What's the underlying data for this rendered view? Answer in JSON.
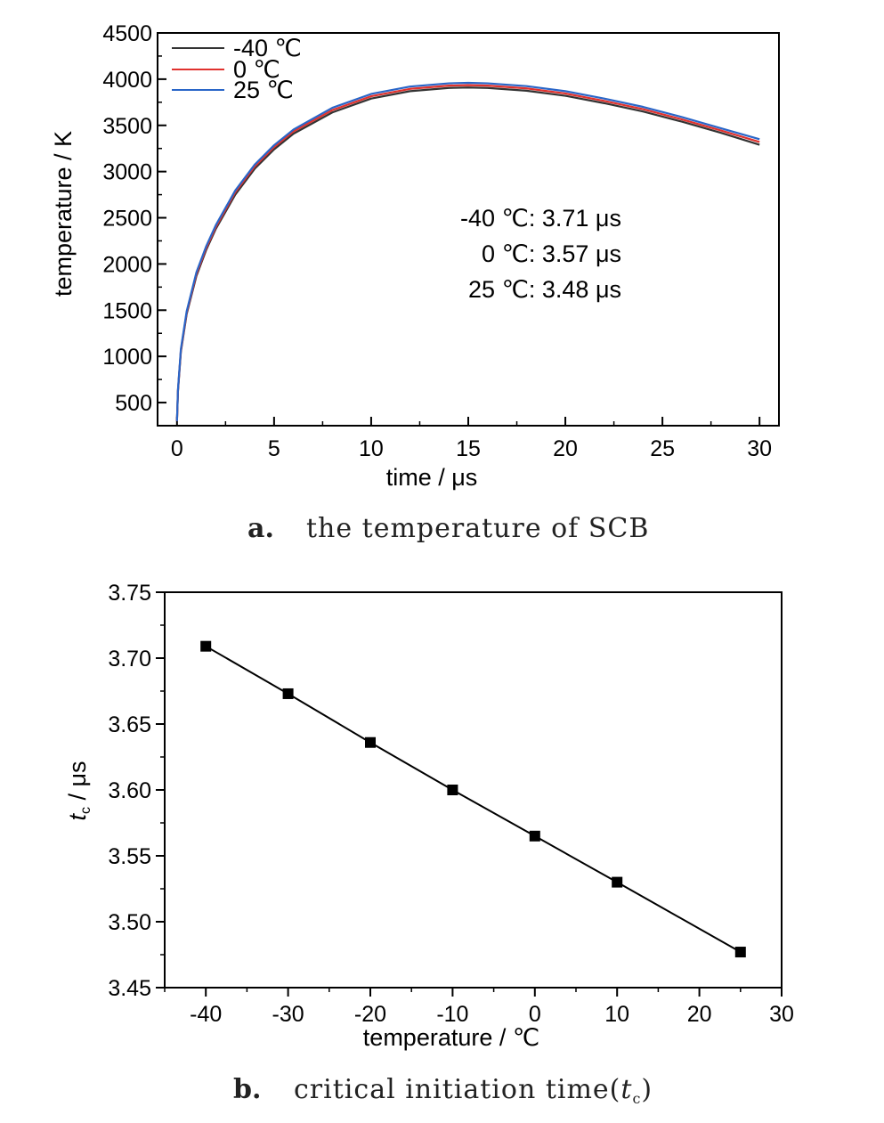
{
  "chart_data": [
    {
      "type": "line",
      "panel": "a",
      "caption_letter": "a.",
      "caption": "the temperature of SCB",
      "xlabel": "time / μs",
      "ylabel": "temperature / K",
      "xlim": [
        -1,
        31
      ],
      "ylim": [
        250,
        4500
      ],
      "xticks": [
        0,
        5,
        10,
        15,
        20,
        25,
        30
      ],
      "yticks": [
        500,
        1000,
        1500,
        2000,
        2500,
        3000,
        3500,
        4000,
        4500
      ],
      "legend_position": "top-left",
      "series": [
        {
          "name": "-40 ℃",
          "color": "#333333",
          "x": [
            0,
            0.05,
            0.2,
            0.5,
            1,
            1.5,
            2,
            3,
            4,
            5,
            6,
            8,
            10,
            12,
            14,
            15,
            16,
            18,
            20,
            22,
            24,
            26,
            28,
            30
          ],
          "y": [
            300,
            620,
            1050,
            1460,
            1870,
            2150,
            2380,
            2750,
            3030,
            3240,
            3410,
            3640,
            3790,
            3870,
            3905,
            3910,
            3905,
            3875,
            3820,
            3740,
            3650,
            3540,
            3420,
            3290
          ]
        },
        {
          "name": "0 ℃",
          "color": "#e0322e",
          "x": [
            0,
            0.05,
            0.2,
            0.5,
            1,
            1.5,
            2,
            3,
            4,
            5,
            6,
            8,
            10,
            12,
            14,
            15,
            16,
            18,
            20,
            22,
            24,
            26,
            28,
            30
          ],
          "y": [
            300,
            630,
            1065,
            1475,
            1890,
            2170,
            2400,
            2775,
            3055,
            3265,
            3435,
            3665,
            3815,
            3895,
            3930,
            3935,
            3930,
            3900,
            3845,
            3765,
            3675,
            3565,
            3445,
            3320
          ]
        },
        {
          "name": "25 ℃",
          "color": "#2a66c8",
          "x": [
            0,
            0.05,
            0.2,
            0.5,
            1,
            1.5,
            2,
            3,
            4,
            5,
            6,
            8,
            10,
            12,
            14,
            15,
            16,
            18,
            20,
            22,
            24,
            26,
            28,
            30
          ],
          "y": [
            300,
            640,
            1080,
            1490,
            1910,
            2190,
            2420,
            2795,
            3075,
            3285,
            3455,
            3690,
            3840,
            3920,
            3955,
            3960,
            3955,
            3925,
            3870,
            3790,
            3700,
            3590,
            3470,
            3350
          ]
        }
      ],
      "annotations": [
        "-40 ℃: 3.71 μs",
        "0 ℃: 3.57 μs",
        "25 ℃: 3.48 μs"
      ]
    },
    {
      "type": "line",
      "panel": "b",
      "caption_letter": "b.",
      "caption": "critical initiation time(",
      "caption_var": "t",
      "caption_sub": "c",
      "caption_close": ")",
      "xlabel": "temperature / ℃",
      "ylabel_var": "t",
      "ylabel_sub": "c",
      "ylabel_rest": " / μs",
      "xlim": [
        -45,
        30
      ],
      "ylim": [
        3.45,
        3.75
      ],
      "xticks": [
        -40,
        -30,
        -20,
        -10,
        0,
        10,
        20,
        30
      ],
      "yticks": [
        3.45,
        3.5,
        3.55,
        3.6,
        3.65,
        3.7,
        3.75
      ],
      "ytick_labels": [
        "3.45",
        "3.50",
        "3.55",
        "3.60",
        "3.65",
        "3.70",
        "3.75"
      ],
      "markers": "square",
      "series": [
        {
          "x": [
            -40,
            -30,
            -20,
            -10,
            0,
            10,
            25
          ],
          "y": [
            3.709,
            3.673,
            3.636,
            3.6,
            3.565,
            3.53,
            3.477
          ],
          "color": "#000000"
        }
      ]
    }
  ]
}
